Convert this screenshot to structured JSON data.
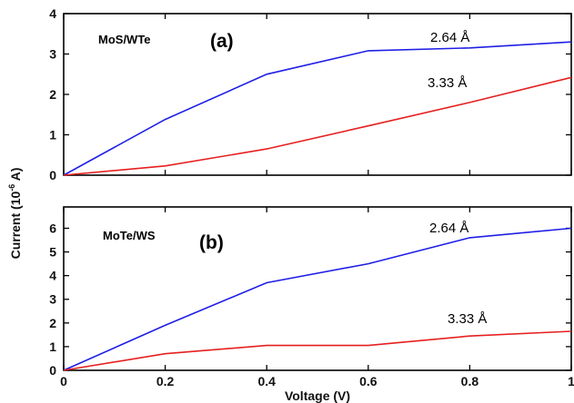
{
  "chart_data": [
    {
      "type": "line",
      "panel_label": "(a)",
      "system_label": "MoS/WTe",
      "x": [
        0,
        0.2,
        0.4,
        0.6,
        0.8,
        1.0
      ],
      "xlim": [
        0,
        1
      ],
      "ylim": [
        0,
        4
      ],
      "yticks": [
        0,
        1,
        2,
        3,
        4
      ],
      "xticks": [
        0,
        0.2,
        0.4,
        0.6,
        0.8,
        1
      ],
      "show_xtick_labels": false,
      "series": [
        {
          "name": "2.64 Å",
          "color": "#1f1fe6",
          "values": [
            0,
            1.38,
            2.5,
            3.08,
            3.15,
            3.3
          ]
        },
        {
          "name": "3.33 Å",
          "color": "#e61f1f",
          "values": [
            0,
            0.23,
            0.65,
            1.22,
            1.8,
            2.42
          ]
        }
      ]
    },
    {
      "type": "line",
      "panel_label": "(b)",
      "system_label": "MoTe/WS",
      "x": [
        0,
        0.2,
        0.4,
        0.6,
        0.8,
        1.0
      ],
      "xlim": [
        0,
        1
      ],
      "ylim": [
        0,
        6.9
      ],
      "yticks": [
        0,
        1,
        2,
        3,
        4,
        5,
        6
      ],
      "xticks": [
        0,
        0.2,
        0.4,
        0.6,
        0.8,
        1
      ],
      "show_xtick_labels": true,
      "series": [
        {
          "name": "2.64 Å",
          "color": "#1f1fe6",
          "values": [
            0,
            1.9,
            3.7,
            4.5,
            5.6,
            6.0
          ]
        },
        {
          "name": "3.33 Å",
          "color": "#e61f1f",
          "values": [
            0,
            0.7,
            1.05,
            1.05,
            1.45,
            1.65
          ]
        }
      ]
    }
  ],
  "axes": {
    "ylabel": "Current (10",
    "ylabel_exp": "-6",
    "ylabel_unit": " A)",
    "xlabel": "Voltage (V)"
  },
  "xtick_labels": [
    "0",
    "0.2",
    "0.4",
    "0.6",
    "0.8",
    "1"
  ]
}
